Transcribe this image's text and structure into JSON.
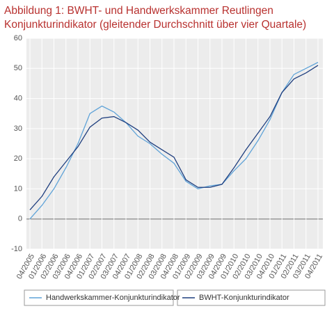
{
  "chart_data": {
    "type": "line",
    "title": [
      "Abbildung 1: BWHT- und Handwerkskammer  Reutlingen",
      "Konjunkturindikator (gleitender Durchschnitt über vier Quartale)"
    ],
    "categories": [
      "04/2005",
      "01/2006",
      "02/2006",
      "03/2006",
      "04/2006",
      "01/2007",
      "02/2007",
      "03/2007",
      "04/2007",
      "01/2008",
      "02/2008",
      "03/2008",
      "04/2008",
      "01/2009",
      "02/2009",
      "03/2009",
      "04/2009",
      "01/2010",
      "02/2010",
      "03/2010",
      "04/2010",
      "01/2011",
      "02/2011",
      "03/2011",
      "04/2011"
    ],
    "series": [
      {
        "name": "Handwerkskammer-Konjunkturindikator",
        "color": "#5fa3d8",
        "values": [
          0,
          4.5,
          10,
          17,
          25,
          35,
          37.5,
          35.5,
          32,
          27.5,
          25,
          21.5,
          18.5,
          12.5,
          10,
          11,
          11.5,
          16,
          20,
          26,
          33,
          42,
          48,
          50,
          52
        ]
      },
      {
        "name": "BWHT-Konjunkturindikator",
        "color": "#1f3f7f",
        "values": [
          3,
          7.5,
          14,
          19,
          24,
          30.5,
          33.5,
          34,
          32,
          29.5,
          25.5,
          23,
          20.5,
          13,
          10.5,
          10.5,
          11.5,
          17,
          23,
          28.5,
          34,
          42,
          46.5,
          48.5,
          51
        ]
      }
    ],
    "ylim": [
      -10,
      60
    ],
    "yticks": [
      -10,
      0,
      10,
      20,
      30,
      40,
      50,
      60
    ],
    "grid": true
  }
}
